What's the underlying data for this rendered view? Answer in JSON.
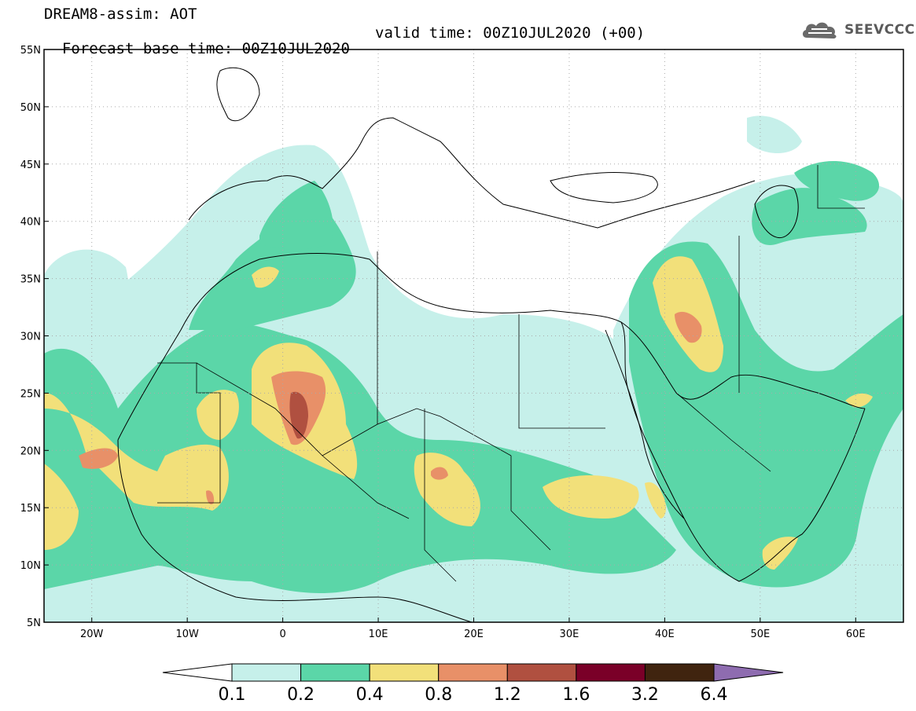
{
  "header": {
    "line1": "DREAM8-assim: AOT",
    "base_time": "Forecast base time: 00Z10JUL2020",
    "valid_time": "valid time: 00Z10JUL2020 (+00)"
  },
  "logo": {
    "text": "SEEVCCC",
    "icon": "cloud-icon"
  },
  "map": {
    "lon_range": [
      -25,
      65
    ],
    "lat_range": [
      5,
      55
    ],
    "lon_ticks": [
      {
        "value": -20,
        "label": "20W"
      },
      {
        "value": -10,
        "label": "10W"
      },
      {
        "value": 0,
        "label": "0"
      },
      {
        "value": 10,
        "label": "10E"
      },
      {
        "value": 20,
        "label": "20E"
      },
      {
        "value": 30,
        "label": "30E"
      },
      {
        "value": 40,
        "label": "40E"
      },
      {
        "value": 50,
        "label": "50E"
      },
      {
        "value": 60,
        "label": "60E"
      }
    ],
    "lat_ticks": [
      {
        "value": 55,
        "label": "55N"
      },
      {
        "value": 50,
        "label": "50N"
      },
      {
        "value": 45,
        "label": "45N"
      },
      {
        "value": 40,
        "label": "40N"
      },
      {
        "value": 35,
        "label": "35N"
      },
      {
        "value": 30,
        "label": "30N"
      },
      {
        "value": 25,
        "label": "25N"
      },
      {
        "value": 20,
        "label": "20N"
      },
      {
        "value": 15,
        "label": "15N"
      },
      {
        "value": 10,
        "label": "10N"
      },
      {
        "value": 5,
        "label": "5N"
      }
    ]
  },
  "colorbar": {
    "boundaries": [
      "0.1",
      "0.2",
      "0.4",
      "0.8",
      "1.2",
      "1.6",
      "3.2",
      "6.4"
    ],
    "colors": [
      "#c6f0ea",
      "#5bd6a8",
      "#f2e07a",
      "#e89068",
      "#b05040",
      "#7a0028",
      "#40240f",
      "#8e6cb0"
    ],
    "under_color": "#ffffff"
  },
  "colors": {
    "level1": "#c6f0ea",
    "level2": "#5bd6a8",
    "level3": "#f2e07a",
    "level4": "#e89068",
    "level5": "#b05040",
    "frame": "#000000",
    "grid": "#aaaaaa"
  }
}
